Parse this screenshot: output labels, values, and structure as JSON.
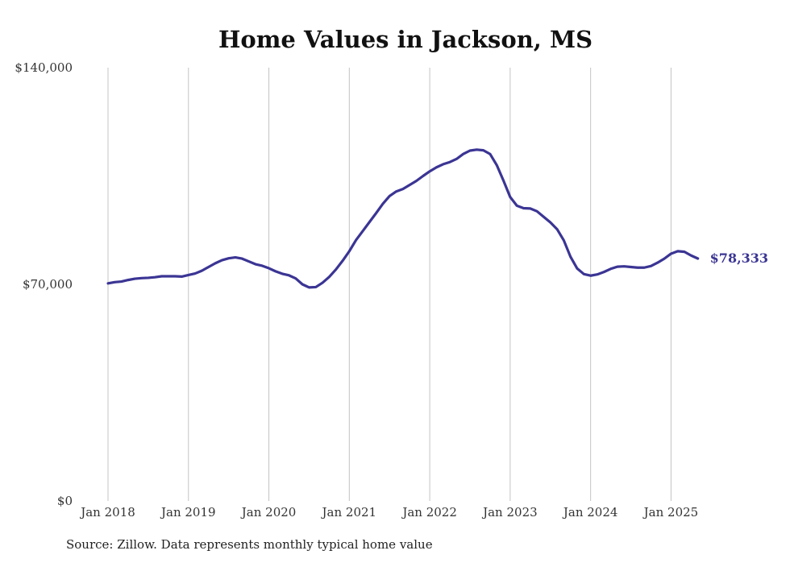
{
  "chart_data": {
    "type": "line",
    "title": "Home Values in Jackson, MS",
    "xlabel": "",
    "ylabel": "",
    "ylim": [
      0,
      140000
    ],
    "y_ticks": [
      {
        "value": 0,
        "label": "$0"
      },
      {
        "value": 70000,
        "label": "$70,000"
      },
      {
        "value": 140000,
        "label": "$140,000"
      }
    ],
    "x_ticks": [
      {
        "value": 0,
        "label": "Jan 2018"
      },
      {
        "value": 12,
        "label": "Jan 2019"
      },
      {
        "value": 24,
        "label": "Jan 2020"
      },
      {
        "value": 36,
        "label": "Jan 2021"
      },
      {
        "value": 48,
        "label": "Jan 2022"
      },
      {
        "value": 60,
        "label": "Jan 2023"
      },
      {
        "value": 72,
        "label": "Jan 2024"
      },
      {
        "value": 84,
        "label": "Jan 2025"
      }
    ],
    "xlim": [
      0,
      89
    ],
    "grid": "vertical",
    "color": "#3b3594",
    "end_label": "$78,333",
    "series": [
      {
        "name": "Typical home value",
        "values": [
          70300,
          70700,
          70900,
          71400,
          71800,
          72000,
          72100,
          72300,
          72600,
          72600,
          72600,
          72500,
          73000,
          73500,
          74400,
          75600,
          76800,
          77800,
          78400,
          78700,
          78300,
          77400,
          76500,
          76000,
          75200,
          74200,
          73400,
          72900,
          71900,
          70000,
          69000,
          69100,
          70500,
          72400,
          74800,
          77600,
          80700,
          84300,
          87200,
          90100,
          93000,
          96000,
          98500,
          100000,
          100800,
          102100,
          103400,
          105000,
          106500,
          107800,
          108800,
          109500,
          110500,
          112100,
          113200,
          113500,
          113300,
          112100,
          108500,
          103500,
          98200,
          95400,
          94600,
          94500,
          93600,
          91800,
          90000,
          87800,
          84200,
          78900,
          75100,
          73300,
          72800,
          73200,
          74000,
          75000,
          75700,
          75800,
          75600,
          75400,
          75400,
          75900,
          77000,
          78300,
          79900,
          80700,
          80500,
          79300,
          78333
        ]
      }
    ]
  },
  "footer": {
    "source": "Source: Zillow. Data represents monthly typical home value"
  }
}
